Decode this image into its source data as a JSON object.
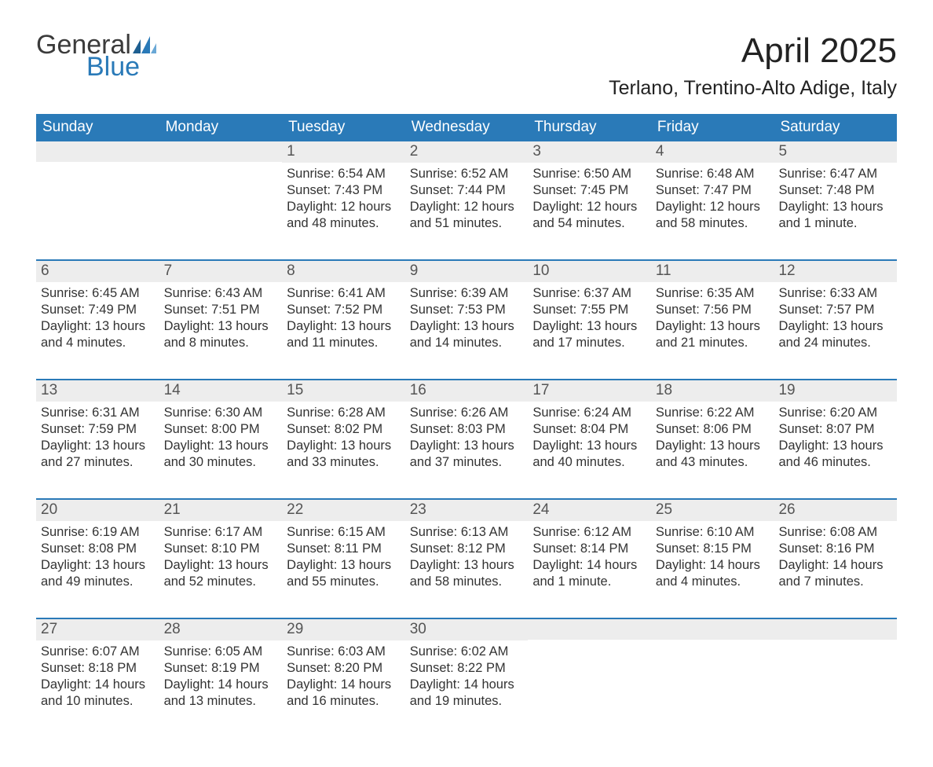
{
  "brand": {
    "word1": "General",
    "word2": "Blue",
    "color1": "#3b3b3b",
    "color2": "#2a7ab8"
  },
  "title": "April 2025",
  "location": "Terlano, Trentino-Alto Adige, Italy",
  "colors": {
    "header_bg": "#2a7ab8",
    "header_text": "#ffffff",
    "daynum_bg": "#ededed",
    "daynum_text": "#555555",
    "body_text": "#333333",
    "rule": "#2a7ab8",
    "page_bg": "#ffffff"
  },
  "fonts": {
    "title_pt": 44,
    "location_pt": 25,
    "weekday_pt": 19,
    "daynum_pt": 19,
    "body_pt": 16.5,
    "logo_pt": 34
  },
  "weekdays": [
    "Sunday",
    "Monday",
    "Tuesday",
    "Wednesday",
    "Thursday",
    "Friday",
    "Saturday"
  ],
  "weeks": [
    [
      {
        "day": "",
        "sunrise": "",
        "sunset": "",
        "daylight1": "",
        "daylight2": ""
      },
      {
        "day": "",
        "sunrise": "",
        "sunset": "",
        "daylight1": "",
        "daylight2": ""
      },
      {
        "day": "1",
        "sunrise": "Sunrise: 6:54 AM",
        "sunset": "Sunset: 7:43 PM",
        "daylight1": "Daylight: 12 hours",
        "daylight2": "and 48 minutes."
      },
      {
        "day": "2",
        "sunrise": "Sunrise: 6:52 AM",
        "sunset": "Sunset: 7:44 PM",
        "daylight1": "Daylight: 12 hours",
        "daylight2": "and 51 minutes."
      },
      {
        "day": "3",
        "sunrise": "Sunrise: 6:50 AM",
        "sunset": "Sunset: 7:45 PM",
        "daylight1": "Daylight: 12 hours",
        "daylight2": "and 54 minutes."
      },
      {
        "day": "4",
        "sunrise": "Sunrise: 6:48 AM",
        "sunset": "Sunset: 7:47 PM",
        "daylight1": "Daylight: 12 hours",
        "daylight2": "and 58 minutes."
      },
      {
        "day": "5",
        "sunrise": "Sunrise: 6:47 AM",
        "sunset": "Sunset: 7:48 PM",
        "daylight1": "Daylight: 13 hours",
        "daylight2": "and 1 minute."
      }
    ],
    [
      {
        "day": "6",
        "sunrise": "Sunrise: 6:45 AM",
        "sunset": "Sunset: 7:49 PM",
        "daylight1": "Daylight: 13 hours",
        "daylight2": "and 4 minutes."
      },
      {
        "day": "7",
        "sunrise": "Sunrise: 6:43 AM",
        "sunset": "Sunset: 7:51 PM",
        "daylight1": "Daylight: 13 hours",
        "daylight2": "and 8 minutes."
      },
      {
        "day": "8",
        "sunrise": "Sunrise: 6:41 AM",
        "sunset": "Sunset: 7:52 PM",
        "daylight1": "Daylight: 13 hours",
        "daylight2": "and 11 minutes."
      },
      {
        "day": "9",
        "sunrise": "Sunrise: 6:39 AM",
        "sunset": "Sunset: 7:53 PM",
        "daylight1": "Daylight: 13 hours",
        "daylight2": "and 14 minutes."
      },
      {
        "day": "10",
        "sunrise": "Sunrise: 6:37 AM",
        "sunset": "Sunset: 7:55 PM",
        "daylight1": "Daylight: 13 hours",
        "daylight2": "and 17 minutes."
      },
      {
        "day": "11",
        "sunrise": "Sunrise: 6:35 AM",
        "sunset": "Sunset: 7:56 PM",
        "daylight1": "Daylight: 13 hours",
        "daylight2": "and 21 minutes."
      },
      {
        "day": "12",
        "sunrise": "Sunrise: 6:33 AM",
        "sunset": "Sunset: 7:57 PM",
        "daylight1": "Daylight: 13 hours",
        "daylight2": "and 24 minutes."
      }
    ],
    [
      {
        "day": "13",
        "sunrise": "Sunrise: 6:31 AM",
        "sunset": "Sunset: 7:59 PM",
        "daylight1": "Daylight: 13 hours",
        "daylight2": "and 27 minutes."
      },
      {
        "day": "14",
        "sunrise": "Sunrise: 6:30 AM",
        "sunset": "Sunset: 8:00 PM",
        "daylight1": "Daylight: 13 hours",
        "daylight2": "and 30 minutes."
      },
      {
        "day": "15",
        "sunrise": "Sunrise: 6:28 AM",
        "sunset": "Sunset: 8:02 PM",
        "daylight1": "Daylight: 13 hours",
        "daylight2": "and 33 minutes."
      },
      {
        "day": "16",
        "sunrise": "Sunrise: 6:26 AM",
        "sunset": "Sunset: 8:03 PM",
        "daylight1": "Daylight: 13 hours",
        "daylight2": "and 37 minutes."
      },
      {
        "day": "17",
        "sunrise": "Sunrise: 6:24 AM",
        "sunset": "Sunset: 8:04 PM",
        "daylight1": "Daylight: 13 hours",
        "daylight2": "and 40 minutes."
      },
      {
        "day": "18",
        "sunrise": "Sunrise: 6:22 AM",
        "sunset": "Sunset: 8:06 PM",
        "daylight1": "Daylight: 13 hours",
        "daylight2": "and 43 minutes."
      },
      {
        "day": "19",
        "sunrise": "Sunrise: 6:20 AM",
        "sunset": "Sunset: 8:07 PM",
        "daylight1": "Daylight: 13 hours",
        "daylight2": "and 46 minutes."
      }
    ],
    [
      {
        "day": "20",
        "sunrise": "Sunrise: 6:19 AM",
        "sunset": "Sunset: 8:08 PM",
        "daylight1": "Daylight: 13 hours",
        "daylight2": "and 49 minutes."
      },
      {
        "day": "21",
        "sunrise": "Sunrise: 6:17 AM",
        "sunset": "Sunset: 8:10 PM",
        "daylight1": "Daylight: 13 hours",
        "daylight2": "and 52 minutes."
      },
      {
        "day": "22",
        "sunrise": "Sunrise: 6:15 AM",
        "sunset": "Sunset: 8:11 PM",
        "daylight1": "Daylight: 13 hours",
        "daylight2": "and 55 minutes."
      },
      {
        "day": "23",
        "sunrise": "Sunrise: 6:13 AM",
        "sunset": "Sunset: 8:12 PM",
        "daylight1": "Daylight: 13 hours",
        "daylight2": "and 58 minutes."
      },
      {
        "day": "24",
        "sunrise": "Sunrise: 6:12 AM",
        "sunset": "Sunset: 8:14 PM",
        "daylight1": "Daylight: 14 hours",
        "daylight2": "and 1 minute."
      },
      {
        "day": "25",
        "sunrise": "Sunrise: 6:10 AM",
        "sunset": "Sunset: 8:15 PM",
        "daylight1": "Daylight: 14 hours",
        "daylight2": "and 4 minutes."
      },
      {
        "day": "26",
        "sunrise": "Sunrise: 6:08 AM",
        "sunset": "Sunset: 8:16 PM",
        "daylight1": "Daylight: 14 hours",
        "daylight2": "and 7 minutes."
      }
    ],
    [
      {
        "day": "27",
        "sunrise": "Sunrise: 6:07 AM",
        "sunset": "Sunset: 8:18 PM",
        "daylight1": "Daylight: 14 hours",
        "daylight2": "and 10 minutes."
      },
      {
        "day": "28",
        "sunrise": "Sunrise: 6:05 AM",
        "sunset": "Sunset: 8:19 PM",
        "daylight1": "Daylight: 14 hours",
        "daylight2": "and 13 minutes."
      },
      {
        "day": "29",
        "sunrise": "Sunrise: 6:03 AM",
        "sunset": "Sunset: 8:20 PM",
        "daylight1": "Daylight: 14 hours",
        "daylight2": "and 16 minutes."
      },
      {
        "day": "30",
        "sunrise": "Sunrise: 6:02 AM",
        "sunset": "Sunset: 8:22 PM",
        "daylight1": "Daylight: 14 hours",
        "daylight2": "and 19 minutes."
      },
      {
        "day": "",
        "sunrise": "",
        "sunset": "",
        "daylight1": "",
        "daylight2": ""
      },
      {
        "day": "",
        "sunrise": "",
        "sunset": "",
        "daylight1": "",
        "daylight2": ""
      },
      {
        "day": "",
        "sunrise": "",
        "sunset": "",
        "daylight1": "",
        "daylight2": ""
      }
    ]
  ]
}
